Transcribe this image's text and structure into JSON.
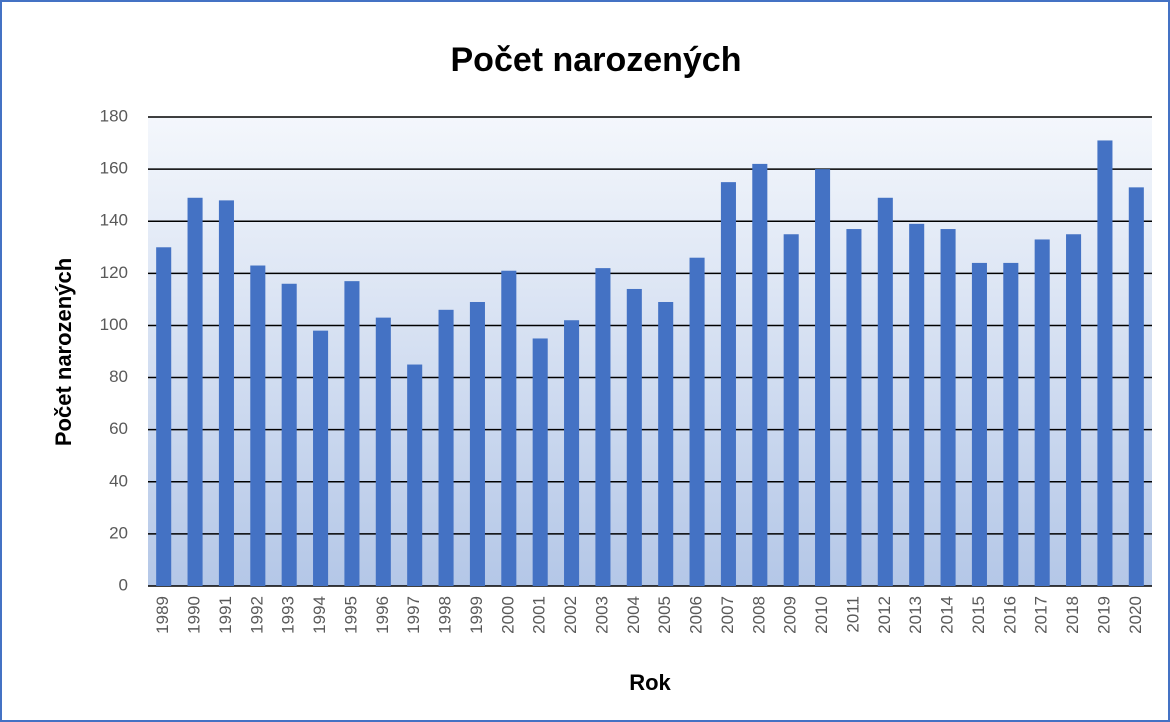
{
  "chart_data": {
    "type": "bar",
    "title": "Počet narozených",
    "x_label": "Rok",
    "y_label": "Počet narozených",
    "categories": [
      "1989",
      "1990",
      "1991",
      "1992",
      "1993",
      "1994",
      "1995",
      "1996",
      "1997",
      "1998",
      "1999",
      "2000",
      "2001",
      "2002",
      "2003",
      "2004",
      "2005",
      "2006",
      "2007",
      "2008",
      "2009",
      "2010",
      "2011",
      "2012",
      "2013",
      "2014",
      "2015",
      "2016",
      "2017",
      "2018",
      "2019",
      "2020"
    ],
    "values": [
      130,
      149,
      148,
      123,
      116,
      98,
      117,
      103,
      85,
      106,
      109,
      121,
      95,
      102,
      122,
      114,
      109,
      126,
      155,
      162,
      135,
      160,
      137,
      149,
      139,
      137,
      124,
      124,
      133,
      135,
      171,
      153
    ],
    "color": "#4472c4",
    "ylim": [
      0,
      180
    ],
    "yticks": [
      0,
      20,
      40,
      60,
      80,
      100,
      120,
      140,
      160,
      180
    ],
    "grid": true
  }
}
